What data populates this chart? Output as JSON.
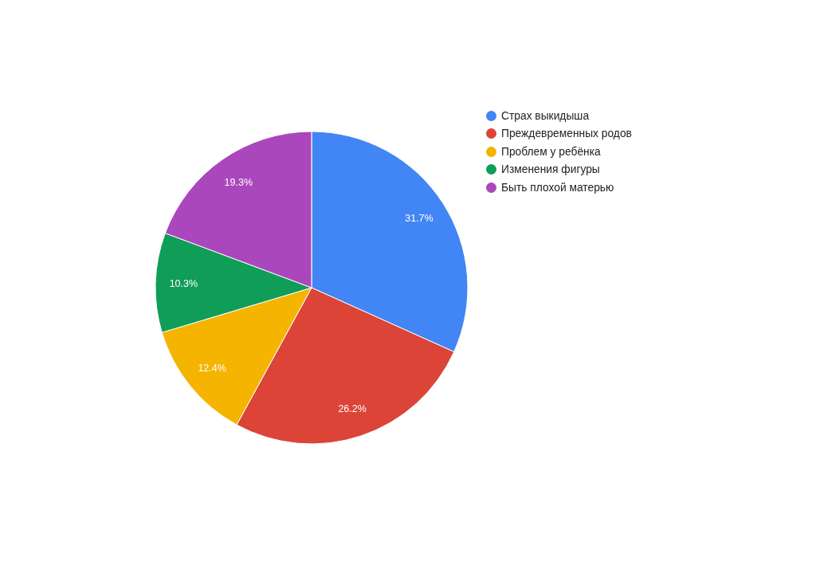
{
  "chart_data": {
    "type": "pie",
    "categories": [
      "Страх выкидыша",
      "Преждевременных родов",
      "Проблем у ребёнка",
      "Изменения фигуры",
      "Быть плохой матерью"
    ],
    "values": [
      31.7,
      26.2,
      12.4,
      10.3,
      19.3
    ],
    "colors": [
      "#4285f4",
      "#db4437",
      "#f4b400",
      "#0f9d58",
      "#ab47bc"
    ],
    "value_labels": [
      "31.7%",
      "26.2%",
      "12.4%",
      "10.3%",
      "19.3%"
    ],
    "legend": "top right"
  }
}
